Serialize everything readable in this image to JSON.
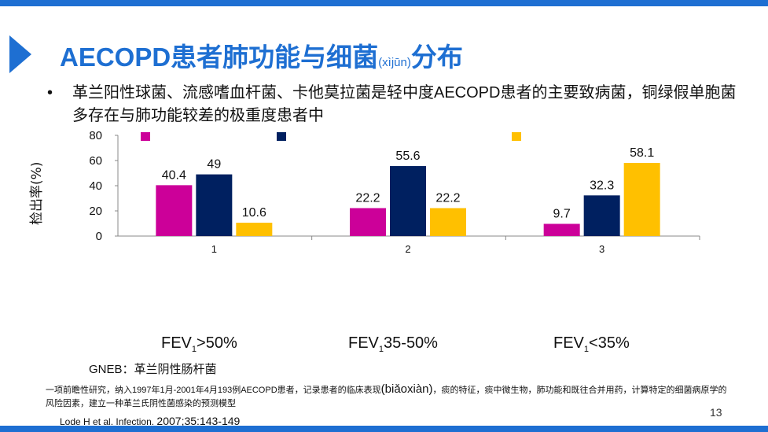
{
  "title": {
    "main": "AECOPD患者肺功能与细菌",
    "pinyin": "(xìjūn)",
    "tail": "分布"
  },
  "bullet": "革兰阳性球菌、流感嗜血杆菌、卡他莫拉菌是轻中度AECOPD患者的主要致病菌，铜绿假单胞菌多存在与肺功能较差的极重度患者中",
  "chart_data": {
    "type": "bar",
    "categories": [
      "1",
      "2",
      "3"
    ],
    "ylabel": "检出率(%)",
    "ylim": [
      0,
      80
    ],
    "yticks": [
      0,
      20,
      40,
      60,
      80
    ],
    "grid": false,
    "legend": "top",
    "series": [
      {
        "color": "#cc0099",
        "values": [
          40.4,
          22.2,
          9.7
        ]
      },
      {
        "color": "#002060",
        "values": [
          49,
          55.6,
          32.3
        ]
      },
      {
        "color": "#ffc000",
        "values": [
          10.6,
          22.2,
          58.1
        ]
      }
    ]
  },
  "groups": [
    {
      "label": "FEV",
      "sub": "1",
      "rest": ">50%"
    },
    {
      "label": "FEV",
      "sub": "1",
      "rest": "35-50%"
    },
    {
      "label": "FEV",
      "sub": "1",
      "rest": "<35%"
    }
  ],
  "gneb": "GNEB：革兰阴性肠杆菌",
  "note": {
    "a": "一项前瞻性研究，纳入1997年1月-2001年4月193例AECOPD患者，记录患者的临床表现",
    "b": "(biǎoxiàn)",
    "c": "，痰的特征，痰中微生物，肺功能和既往合并用药，计算特定的细菌病原学的风险因素，建立一种革兰氏阴性菌感染的预测模型"
  },
  "citation": {
    "a": "Lode H et al. Infection. ",
    "b": "2007;35:143-149"
  },
  "page_number": "13",
  "colors": {
    "accent": "#1e6fd2"
  }
}
